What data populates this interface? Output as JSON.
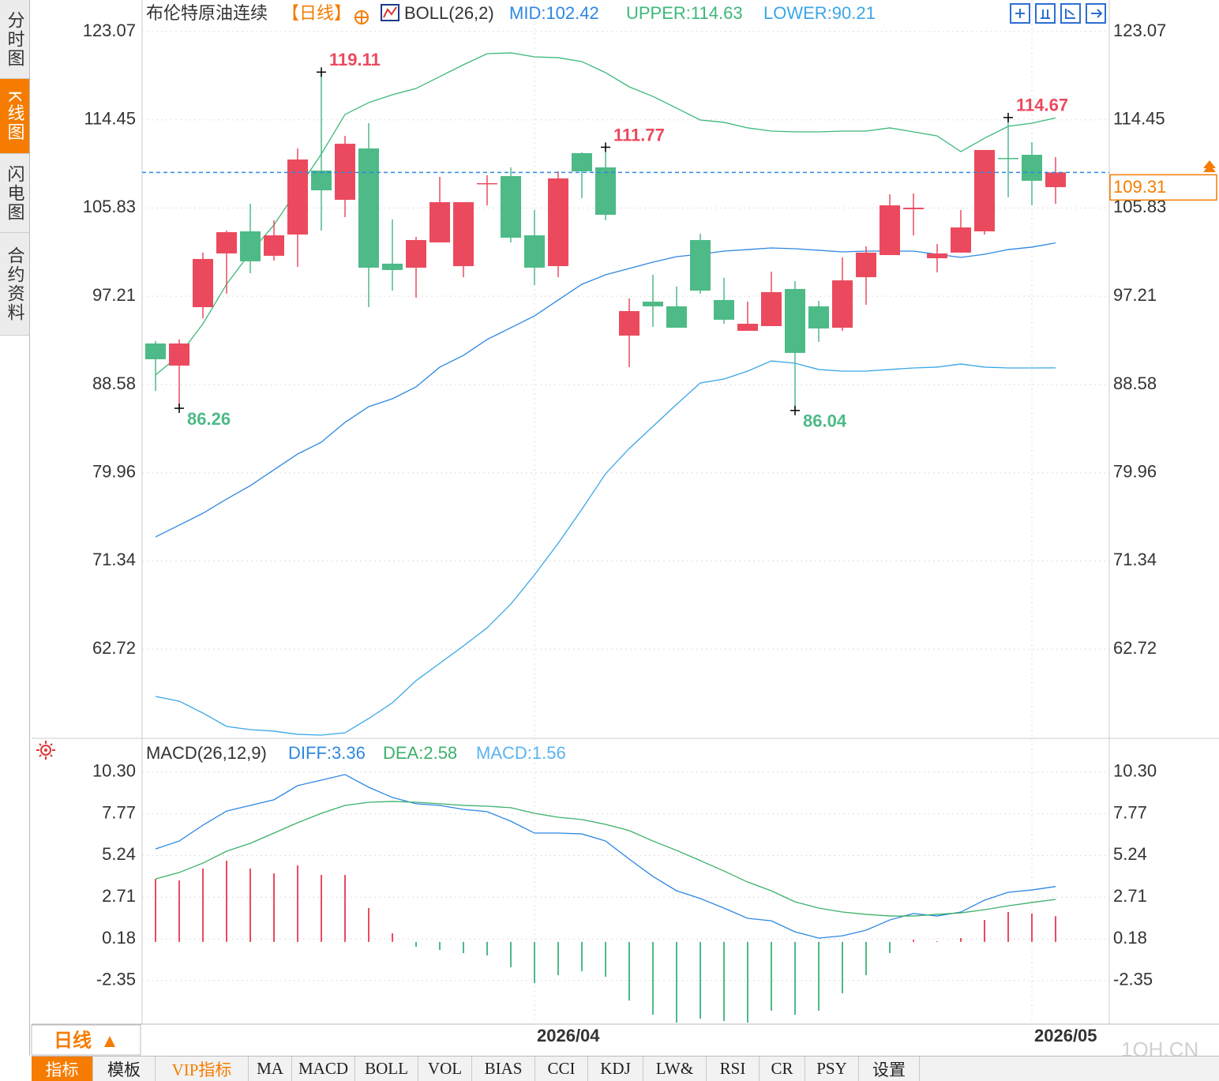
{
  "sidebar": [
    "分时图",
    "K线图",
    "闪电图",
    "合约资料"
  ],
  "period_button": "日线",
  "tabs": [
    "指标",
    "模板",
    "VIP指标",
    "MA",
    "MACD",
    "BOLL",
    "VOL",
    "BIAS",
    "CCI",
    "KDJ",
    "LW&",
    "RSI",
    "CR",
    "PSY",
    "设置"
  ],
  "watermark": "1QH.CN",
  "chart_data": [
    {
      "type": "candlestick",
      "title": "布伦特原油连续",
      "period": "【日线】",
      "indicator": "BOLL(26,2)",
      "categories": [
        null,
        null,
        null,
        null,
        null,
        null,
        null,
        null,
        null,
        null,
        null,
        null,
        null,
        null,
        null,
        null,
        "2026/04",
        null,
        null,
        null,
        null,
        null,
        null,
        null,
        null,
        null,
        null,
        null,
        null,
        null,
        null,
        null,
        null,
        null,
        null,
        null,
        null,
        "2026/05",
        null
      ],
      "open": [
        92.59,
        90.43,
        96.14,
        101.39,
        103.55,
        101.16,
        103.24,
        109.49,
        106.63,
        111.65,
        100.39,
        100.0,
        102.47,
        100.15,
        108.18,
        108.95,
        103.16,
        100.15,
        111.19,
        109.8,
        93.36,
        96.68,
        96.22,
        102.7,
        96.84,
        93.83,
        94.29,
        97.92,
        96.22,
        94.13,
        99.07,
        101.23,
        105.71,
        100.92,
        101.47,
        103.55,
        110.72,
        111.03,
        107.87
      ],
      "high": [
        92.82,
        92.98,
        101.47,
        103.63,
        106.25,
        104.63,
        111.65,
        119.11,
        112.88,
        114.12,
        104.71,
        103.01,
        108.87,
        106.4,
        109.03,
        109.8,
        105.63,
        109.41,
        111.26,
        111.77,
        96.99,
        99.3,
        98.15,
        103.32,
        99.0,
        96.68,
        99.61,
        98.69,
        96.76,
        101.0,
        102.08,
        107.17,
        107.25,
        102.31,
        105.63,
        111.5,
        114.67,
        112.27,
        110.8
      ],
      "low": [
        87.96,
        86.26,
        95.06,
        97.45,
        99.46,
        100.69,
        100.08,
        103.63,
        104.94,
        96.14,
        97.76,
        97.07,
        102.47,
        99.07,
        106.09,
        102.47,
        98.3,
        99.07,
        106.79,
        104.63,
        90.28,
        94.21,
        94.13,
        97.45,
        94.52,
        93.83,
        94.29,
        86.04,
        92.75,
        93.83,
        96.37,
        101.23,
        103.16,
        99.54,
        101.47,
        103.24,
        106.87,
        106.09,
        106.25
      ],
      "close": [
        91.05,
        92.59,
        100.85,
        103.47,
        100.62,
        103.16,
        110.57,
        107.56,
        112.11,
        100.0,
        99.77,
        102.7,
        106.4,
        106.4,
        108.26,
        102.93,
        100.0,
        108.72,
        109.41,
        105.17,
        95.76,
        96.22,
        94.13,
        97.76,
        94.91,
        94.52,
        97.61,
        91.67,
        94.06,
        98.76,
        101.47,
        106.09,
        105.86,
        101.39,
        103.93,
        111.5,
        110.65,
        108.49,
        109.31
      ],
      "up_color": "#eb4a5e",
      "down_color": "#4dba87",
      "marked_highs": [
        7,
        19,
        36
      ],
      "marked_lows": [
        1,
        27
      ],
      "last_price_color": "#f57c00",
      "series": [
        {
          "name": "MID:102.42",
          "color": "#2d87e2",
          "values": [
            73.69,
            74.84,
            76.0,
            77.39,
            78.7,
            80.25,
            81.79,
            82.95,
            84.88,
            86.42,
            87.19,
            88.35,
            90.28,
            91.43,
            92.98,
            94.13,
            95.29,
            96.84,
            98.38,
            99.3,
            99.92,
            100.54,
            101.08,
            101.31,
            101.62,
            101.77,
            101.93,
            101.85,
            101.7,
            101.54,
            101.62,
            101.62,
            101.62,
            101.31,
            101.0,
            101.31,
            101.77,
            102.01,
            102.42
          ]
        },
        {
          "name": "UPPER:114.63",
          "color": "#3cb878",
          "values": [
            89.51,
            91.43,
            94.52,
            98.38,
            101.47,
            104.17,
            107.64,
            111.11,
            114.97,
            116.13,
            116.9,
            117.51,
            118.67,
            119.83,
            120.91,
            120.99,
            120.6,
            120.52,
            120.14,
            119.06,
            117.67,
            116.74,
            115.59,
            114.43,
            114.2,
            113.66,
            113.35,
            113.27,
            113.27,
            113.35,
            113.35,
            113.66,
            113.27,
            112.88,
            111.34,
            112.65,
            113.81,
            114.12,
            114.63
          ]
        },
        {
          "name": "LOWER:90.21",
          "color": "#3aa6e6",
          "values": [
            58.1,
            57.64,
            56.48,
            55.17,
            54.86,
            54.71,
            54.4,
            54.32,
            54.55,
            55.94,
            57.48,
            59.64,
            61.34,
            63.04,
            64.81,
            67.13,
            69.98,
            73.07,
            76.39,
            79.86,
            82.33,
            84.49,
            86.65,
            88.73,
            89.12,
            89.89,
            90.89,
            90.66,
            90.05,
            89.89,
            89.89,
            90.05,
            90.2,
            90.28,
            90.59,
            90.28,
            90.2,
            90.2,
            90.21
          ]
        }
      ],
      "ylim": [
        54.01,
        123.07
      ],
      "yticks": [
        123.07,
        114.45,
        105.83,
        97.21,
        88.58,
        79.96,
        71.34,
        62.72
      ],
      "grid": true
    },
    {
      "type": "macd",
      "title": "MACD(26,12,9)",
      "up_color": "#eb4a5e",
      "down_color": "#4dba87",
      "series": [
        {
          "name": "DIFF:3.36",
          "color": "#2d87e2",
          "style": "line",
          "values": [
            5.64,
            6.12,
            7.08,
            7.94,
            8.28,
            8.62,
            9.48,
            9.81,
            10.15,
            9.38,
            8.76,
            8.38,
            8.28,
            8.04,
            7.9,
            7.32,
            6.6,
            6.6,
            6.55,
            6.12,
            5.02,
            3.97,
            3.1,
            2.63,
            2.05,
            1.43,
            1.28,
            0.61,
            0.23,
            0.37,
            0.71,
            1.33,
            1.72,
            1.57,
            1.81,
            2.53,
            3.01,
            3.15,
            3.36
          ]
        },
        {
          "name": "DEA:2.58",
          "color": "#3cb06a",
          "style": "line",
          "values": [
            3.82,
            4.21,
            4.78,
            5.5,
            5.98,
            6.6,
            7.23,
            7.8,
            8.28,
            8.47,
            8.52,
            8.47,
            8.38,
            8.28,
            8.23,
            8.14,
            7.8,
            7.56,
            7.42,
            7.13,
            6.75,
            6.12,
            5.55,
            4.93,
            4.3,
            3.63,
            3.1,
            2.43,
            2.05,
            1.81,
            1.67,
            1.57,
            1.57,
            1.67,
            1.76,
            1.95,
            2.19,
            2.39,
            2.58
          ]
        },
        {
          "name": "MACD:1.56",
          "color": "#5ab4f0",
          "style": "bar",
          "values": [
            3.82,
            3.73,
            4.45,
            4.93,
            4.45,
            4.16,
            4.64,
            4.06,
            4.06,
            2.05,
            0.52,
            -0.3,
            -0.49,
            -0.68,
            -0.82,
            -1.54,
            -2.5,
            -2.02,
            -1.78,
            -2.12,
            -3.56,
            -4.42,
            -4.9,
            -4.66,
            -4.8,
            -4.9,
            -4.18,
            -4.42,
            -4.18,
            -3.12,
            -2.02,
            -0.68,
            0.13,
            0.04,
            0.23,
            1.33,
            1.81,
            1.72,
            1.56
          ]
        }
      ],
      "ylim": [
        -4.99,
        12.11
      ],
      "yticks": [
        {
          "value": 10.3,
          "label": "10.30"
        },
        7.77,
        5.24,
        2.71,
        0.18,
        -2.35
      ],
      "grid": true
    }
  ]
}
